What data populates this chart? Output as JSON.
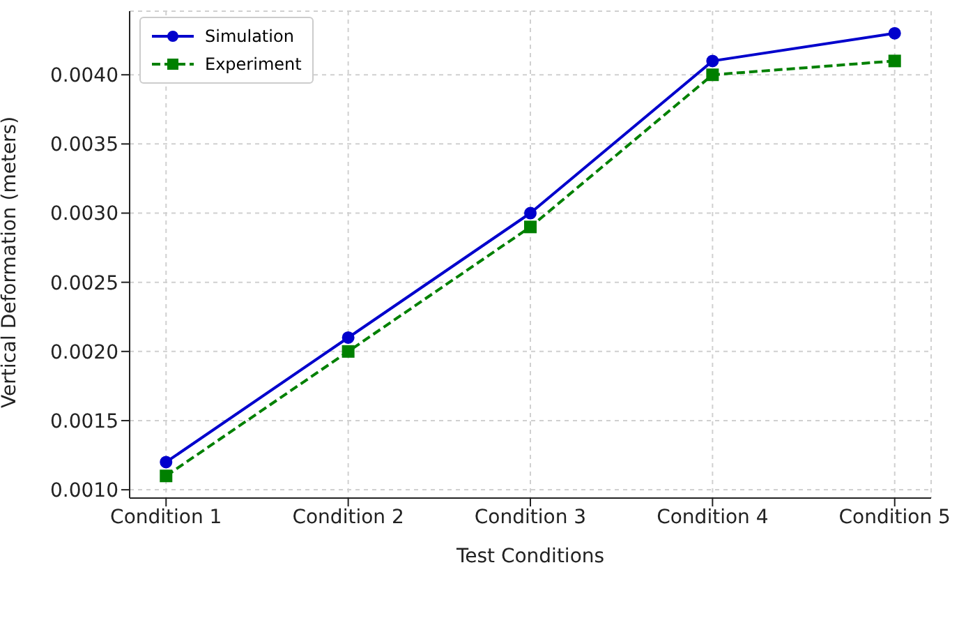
{
  "chart_data": {
    "type": "line",
    "xlabel": "Test Conditions",
    "ylabel": "Vertical Deformation (meters)",
    "categories": [
      "Condition 1",
      "Condition 2",
      "Condition 3",
      "Condition 4",
      "Condition 5"
    ],
    "series": [
      {
        "name": "Simulation",
        "color": "#0000cc",
        "values": [
          0.0012,
          0.0021,
          0.003,
          0.0041,
          0.0043
        ],
        "marker": "circle",
        "line_style": "solid"
      },
      {
        "name": "Experiment",
        "color": "#008000",
        "values": [
          0.0011,
          0.002,
          0.0029,
          0.004,
          0.0041
        ],
        "marker": "square",
        "line_style": "dashed"
      }
    ],
    "ylim": [
      0.00094,
      0.00446
    ],
    "yticks": [
      {
        "value": 0.001,
        "label": "0.0010"
      },
      {
        "value": 0.0015,
        "label": "0.0015"
      },
      {
        "value": 0.002,
        "label": "0.0020"
      },
      {
        "value": 0.0025,
        "label": "0.0025"
      },
      {
        "value": 0.003,
        "label": "0.0030"
      },
      {
        "value": 0.0035,
        "label": "0.0035"
      },
      {
        "value": 0.004,
        "label": "0.0040"
      }
    ],
    "grid": true,
    "legend": "top left"
  }
}
